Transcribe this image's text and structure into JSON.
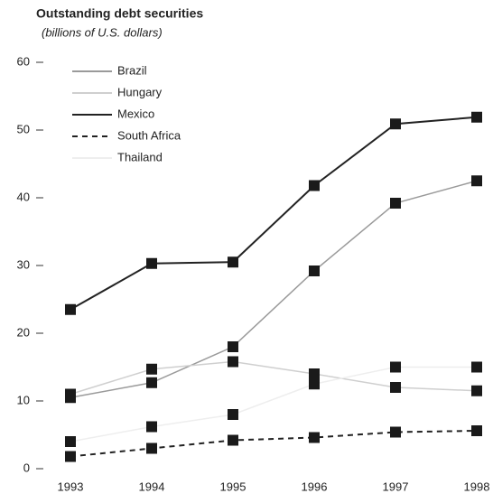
{
  "chart_data": {
    "type": "line",
    "title": "Outstanding debt securities",
    "subtitle": "(billions of U.S. dollars)",
    "categories": [
      "1993",
      "1994",
      "1995",
      "1996",
      "1997",
      "1998"
    ],
    "series": [
      {
        "name": "Brazil",
        "color": "#9a9a9a",
        "line_style": "solid",
        "values": [
          10.5,
          12.7,
          18,
          29.2,
          39.2,
          42.5
        ]
      },
      {
        "name": "Hungary",
        "color": "#cfcfcf",
        "line_style": "solid",
        "values": [
          11,
          14.7,
          15.8,
          14,
          12,
          11.5
        ]
      },
      {
        "name": "Mexico",
        "color": "#222222",
        "line_style": "solid",
        "values": [
          23.5,
          30.3,
          30.5,
          41.8,
          50.9,
          51.9
        ]
      },
      {
        "name": "South Africa",
        "color": "#222222",
        "line_style": "dashed",
        "values": [
          1.8,
          3,
          4.2,
          4.6,
          5.4,
          5.6
        ]
      },
      {
        "name": "Thailand",
        "color": "#eeeeee",
        "line_style": "solid",
        "values": [
          4,
          6.2,
          8,
          12.5,
          15,
          15
        ]
      }
    ],
    "marker_color": "#1a1a1a",
    "ylim": [
      0,
      60
    ],
    "yticks": [
      0,
      10,
      20,
      30,
      40,
      50,
      60
    ]
  }
}
